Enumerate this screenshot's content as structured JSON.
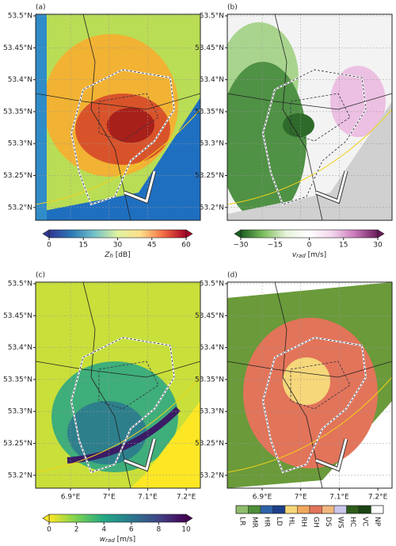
{
  "panels": [
    {
      "label": "(a)",
      "colorbar": {
        "symbol": "Z",
        "subscript": "h",
        "unit": "[dB]",
        "lim": [
          0,
          60
        ],
        "ticks": [
          0,
          15,
          30,
          45,
          60
        ],
        "colors": [
          "#313695",
          "#2c7bb6",
          "#74c2c8",
          "#e0f3a0",
          "#fee08b",
          "#f46d43",
          "#a50026"
        ]
      }
    },
    {
      "label": "(b)",
      "colorbar": {
        "symbol": "v",
        "subscript": "rad",
        "unit": "[m/s]",
        "lim": [
          -30,
          30
        ],
        "ticks": [
          {
            "value": -30,
            "label": "−30"
          },
          {
            "value": -15,
            "label": "−15"
          },
          0,
          15,
          30
        ],
        "colors": [
          "#1b5e20",
          "#7fbf5f",
          "#e8f4dc",
          "#ffffff",
          "#f4d6ee",
          "#c978b9",
          "#6a1b5a"
        ]
      }
    },
    {
      "label": "(c)",
      "colorbar": {
        "symbol": "w",
        "subscript": "rad",
        "unit": "[m/s]",
        "lim": [
          0,
          10
        ],
        "ticks": [
          0,
          2,
          4,
          6,
          8,
          10
        ],
        "colors": [
          "#fde725",
          "#7ad151",
          "#22a884",
          "#2a788e",
          "#414487",
          "#440154"
        ]
      }
    },
    {
      "label": "(d)",
      "classes": [
        {
          "name": "LR",
          "color": "#8fbc6a"
        },
        {
          "name": "MR",
          "color": "#4e8f3a"
        },
        {
          "name": "HR",
          "color": "#2f63a8"
        },
        {
          "name": "LD",
          "color": "#1d3f8a"
        },
        {
          "name": "HL",
          "color": "#f6d77a"
        },
        {
          "name": "RH",
          "color": "#f0a85e"
        },
        {
          "name": "GH",
          "color": "#e2745a"
        },
        {
          "name": "DS",
          "color": "#f1b77e"
        },
        {
          "name": "WS",
          "color": "#c9c6ec"
        },
        {
          "name": "HC",
          "color": "#2e5d1c"
        },
        {
          "name": "VC",
          "color": "#1a4314"
        },
        {
          "name": "NP",
          "color": "#ffffff"
        }
      ]
    }
  ],
  "lat_ticks": [
    "53.5°N",
    "53.45°N",
    "53.4°N",
    "53.35°N",
    "53.3°N",
    "53.25°N",
    "53.2°N"
  ],
  "lon_ticks": [
    "6.9°E",
    "7°E",
    "7.1°E",
    "7.2°E"
  ]
}
